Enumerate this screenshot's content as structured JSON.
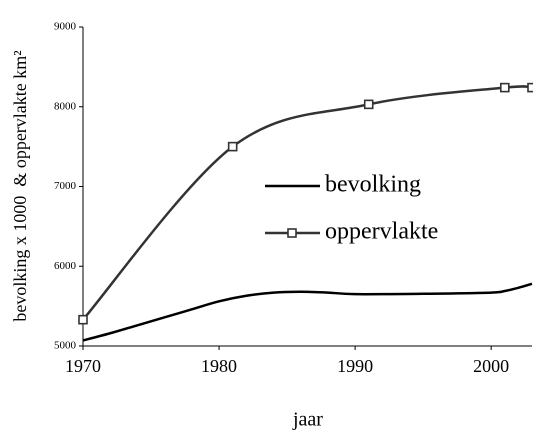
{
  "chart_data": {
    "type": "line",
    "x_label": "jaar",
    "y_label": "bevolking x 1000  & oppervlakte km²",
    "xlim": [
      1970,
      2003
    ],
    "xticks": [
      1970,
      1980,
      1990,
      2000
    ],
    "ylim": [
      5000,
      9000
    ],
    "yticks": [
      5000,
      6000,
      7000,
      8000,
      9000
    ],
    "grid": false,
    "legend": "center",
    "series": [
      {
        "name": "bevolking",
        "color": "#000000",
        "marker": "none",
        "x": [
          1970,
          1972,
          1974,
          1976,
          1978,
          1980,
          1982,
          1984,
          1986,
          1988,
          1990,
          1995,
          2000,
          2001,
          2002,
          2003
        ],
        "values": [
          5070,
          5160,
          5260,
          5360,
          5460,
          5560,
          5630,
          5670,
          5680,
          5670,
          5650,
          5655,
          5670,
          5690,
          5730,
          5780
        ]
      },
      {
        "name": "oppervlakte",
        "color": "#333333",
        "marker": "square",
        "x": [
          1970,
          1981,
          1991,
          2001,
          2003
        ],
        "values": [
          5330,
          7500,
          8030,
          8240,
          8240
        ]
      }
    ]
  }
}
